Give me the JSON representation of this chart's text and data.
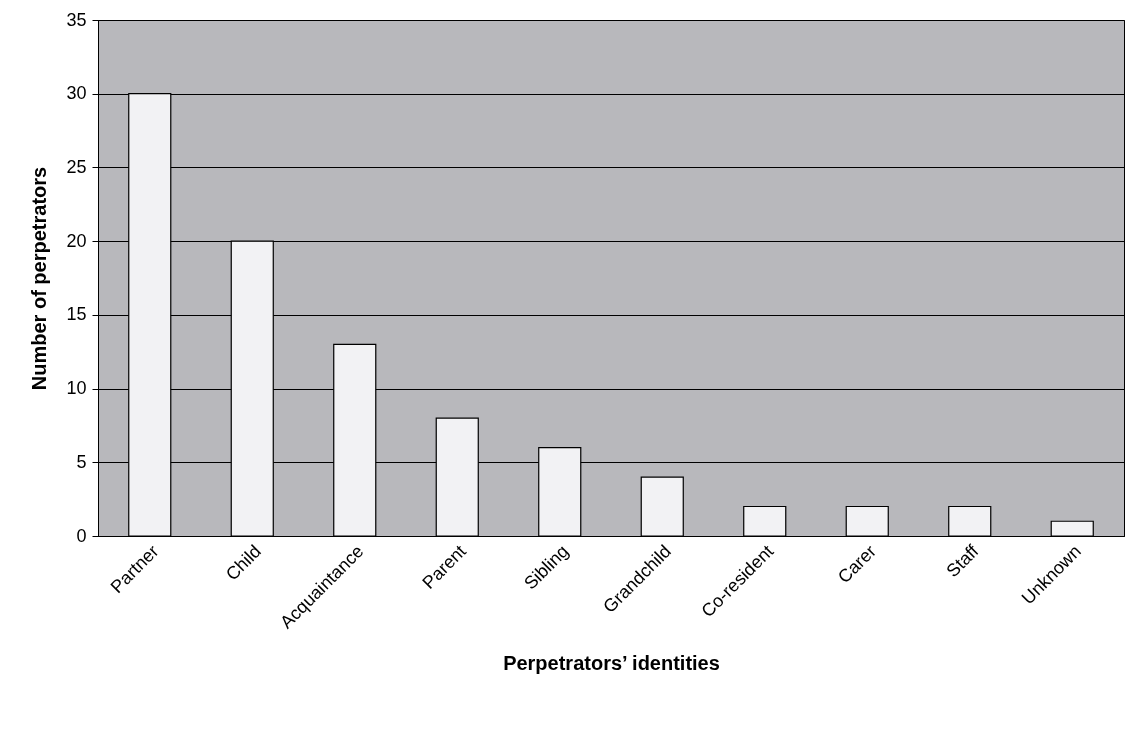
{
  "chart_data": {
    "type": "bar",
    "xlabel": "Perpetrators’ identities",
    "ylabel": "Number of perpetrators",
    "categories": [
      "Partner",
      "Child",
      "Acquaintance",
      "Parent",
      "Sibling",
      "Grandchild",
      "Co-resident",
      "Carer",
      "Staff",
      "Unknown"
    ],
    "values": [
      30,
      20,
      13,
      8,
      6,
      4,
      2,
      2,
      2,
      1
    ],
    "color": "#f2f2f4",
    "ylim": [
      0,
      35
    ],
    "yticks": [
      0,
      5,
      10,
      15,
      20,
      25,
      30,
      35
    ],
    "grid": true
  }
}
